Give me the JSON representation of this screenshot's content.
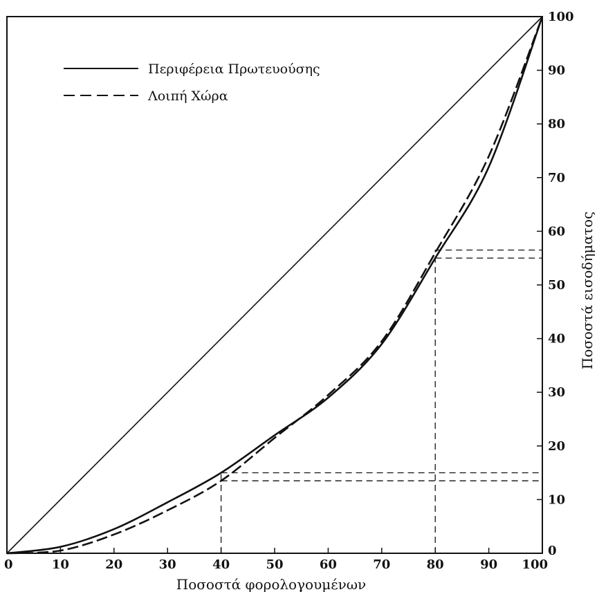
{
  "chart_data": {
    "type": "line",
    "xlabel": "Ποσοστά φορολογουμένων",
    "ylabel": "Ποσοστά εισοδήματος",
    "xlim": [
      0,
      100
    ],
    "ylim": [
      0,
      100
    ],
    "x_ticks": [
      "0",
      "10",
      "20",
      "30",
      "40",
      "50",
      "60",
      "70",
      "80",
      "90",
      "100"
    ],
    "y_ticks": [
      "0",
      "10",
      "20",
      "30",
      "40",
      "50",
      "60",
      "70",
      "80",
      "90",
      "100"
    ],
    "grid": false,
    "legend_position": "top-left",
    "series": [
      {
        "name": "Περιφέρεια Πρωτευούσης",
        "style": "solid",
        "x": [
          0,
          10,
          20,
          30,
          40,
          50,
          60,
          70,
          80,
          90,
          100
        ],
        "y": [
          0,
          1.2,
          4.5,
          9.5,
          15,
          22,
          29,
          39,
          55,
          72,
          100
        ]
      },
      {
        "name": "Λοιπή Χώρα",
        "style": "dashed",
        "x": [
          0,
          10,
          20,
          30,
          40,
          50,
          60,
          70,
          80,
          90,
          100
        ],
        "y": [
          0,
          0.5,
          3.5,
          8,
          13.5,
          21.5,
          29.5,
          39.5,
          56,
          74,
          100
        ]
      },
      {
        "name": "",
        "style": "equality",
        "x": [
          0,
          100
        ],
        "y": [
          0,
          100
        ]
      }
    ],
    "reference_lines": [
      {
        "x": 40,
        "y": 15
      },
      {
        "x": 40,
        "y": 13.5
      },
      {
        "x": 80,
        "y": 56.5
      },
      {
        "x": 80,
        "y": 55
      }
    ]
  }
}
